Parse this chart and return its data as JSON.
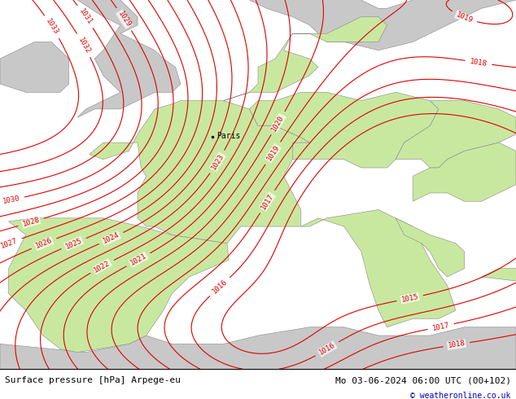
{
  "title_left": "Surface pressure [hPa] Arpege-eu",
  "title_right": "Mo 03-06-2024 06:00 UTC (00+102)",
  "copyright": "© weatheronline.co.uk",
  "fig_width": 6.34,
  "fig_height": 4.9,
  "dpi": 100,
  "land_color_green": "#c8e8a0",
  "land_color_gray": "#c8c8c8",
  "sea_color": "#e0e0e0",
  "contour_color": "#dd0000",
  "border_color": "#888888",
  "city_color": "#000000",
  "bottom_bar_color": "#ffffff",
  "bottom_text_color": "#000000",
  "copyright_color": "#0000cc",
  "font_size_bottom": 8,
  "font_size_city": 7,
  "font_size_label": 6.5
}
